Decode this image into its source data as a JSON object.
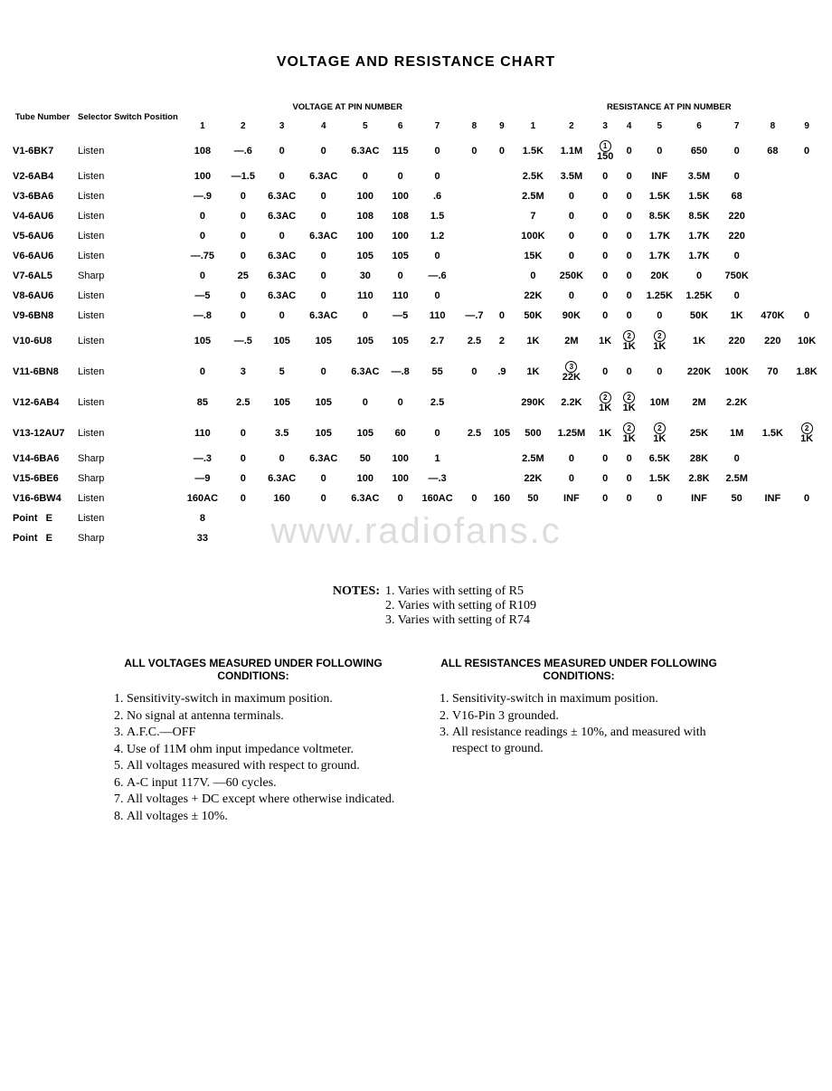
{
  "title": "VOLTAGE AND RESISTANCE CHART",
  "watermark": "www.radiofans.c",
  "headers": {
    "tube": "Tube Number",
    "selector": "Selector Switch Position",
    "voltage_group": "VOLTAGE AT PIN NUMBER",
    "resistance_group": "RESISTANCE AT PIN NUMBER",
    "pins": [
      "1",
      "2",
      "3",
      "4",
      "5",
      "6",
      "7",
      "8",
      "9"
    ]
  },
  "rows": [
    {
      "tube": "V1-6BK7",
      "sel": "Listen",
      "v": [
        "108",
        "—.6",
        "0",
        "0",
        "6.3AC",
        "115",
        "0",
        "0",
        "0"
      ],
      "r": [
        "1.5K",
        "1.1M",
        {
          "note": "1",
          "val": "150"
        },
        "0",
        "0",
        "650",
        "0",
        "68",
        "0"
      ]
    },
    {
      "tube": "V2-6AB4",
      "sel": "Listen",
      "v": [
        "100",
        "—1.5",
        "0",
        "6.3AC",
        "0",
        "0",
        "0",
        "",
        ""
      ],
      "r": [
        "2.5K",
        "3.5M",
        "0",
        "0",
        "INF",
        "3.5M",
        "0",
        "",
        ""
      ]
    },
    {
      "tube": "V3-6BA6",
      "sel": "Listen",
      "v": [
        "—.9",
        "0",
        "6.3AC",
        "0",
        "100",
        "100",
        ".6",
        "",
        ""
      ],
      "r": [
        "2.5M",
        "0",
        "0",
        "0",
        "1.5K",
        "1.5K",
        "68",
        "",
        ""
      ]
    },
    {
      "tube": "V4-6AU6",
      "sel": "Listen",
      "v": [
        "0",
        "0",
        "6.3AC",
        "0",
        "108",
        "108",
        "1.5",
        "",
        ""
      ],
      "r": [
        "7",
        "0",
        "0",
        "0",
        "8.5K",
        "8.5K",
        "220",
        "",
        ""
      ]
    },
    {
      "tube": "V5-6AU6",
      "sel": "Listen",
      "v": [
        "0",
        "0",
        "0",
        "6.3AC",
        "100",
        "100",
        "1.2",
        "",
        ""
      ],
      "r": [
        "100K",
        "0",
        "0",
        "0",
        "1.7K",
        "1.7K",
        "220",
        "",
        ""
      ]
    },
    {
      "tube": "V6-6AU6",
      "sel": "Listen",
      "v": [
        "—.75",
        "0",
        "6.3AC",
        "0",
        "105",
        "105",
        "0",
        "",
        ""
      ],
      "r": [
        "15K",
        "0",
        "0",
        "0",
        "1.7K",
        "1.7K",
        "0",
        "",
        ""
      ]
    },
    {
      "tube": "V7-6AL5",
      "sel": "Sharp",
      "v": [
        "0",
        "25",
        "6.3AC",
        "0",
        "30",
        "0",
        "—.6",
        "",
        ""
      ],
      "r": [
        "0",
        "250K",
        "0",
        "0",
        "20K",
        "0",
        "750K",
        "",
        ""
      ]
    },
    {
      "tube": "V8-6AU6",
      "sel": "Listen",
      "v": [
        "—5",
        "0",
        "6.3AC",
        "0",
        "110",
        "110",
        "0",
        "",
        ""
      ],
      "r": [
        "22K",
        "0",
        "0",
        "0",
        "1.25K",
        "1.25K",
        "0",
        "",
        ""
      ]
    },
    {
      "tube": "V9-6BN8",
      "sel": "Listen",
      "v": [
        "—.8",
        "0",
        "0",
        "6.3AC",
        "0",
        "—5",
        "110",
        "—.7",
        "0"
      ],
      "r": [
        "50K",
        "90K",
        "0",
        "0",
        "0",
        "50K",
        "1K",
        "470K",
        "0"
      ]
    },
    {
      "tube": "V10-6U8",
      "sel": "Listen",
      "v": [
        "105",
        "—.5",
        "105",
        "105",
        "105",
        "105",
        "2.7",
        "2.5",
        "2"
      ],
      "r": [
        "1K",
        "2M",
        "1K",
        {
          "note": "2",
          "val": "1K"
        },
        {
          "note": "2",
          "val": "1K"
        },
        "1K",
        "220",
        "220",
        "10K"
      ]
    },
    {
      "tube": "V11-6BN8",
      "sel": "Listen",
      "v": [
        "0",
        "3",
        "5",
        "0",
        "6.3AC",
        "—.8",
        "55",
        "0",
        ".9"
      ],
      "r": [
        "1K",
        {
          "note": "3",
          "val": "22K"
        },
        "0",
        "0",
        "0",
        "220K",
        "100K",
        "70",
        "1.8K"
      ]
    },
    {
      "tube": "V12-6AB4",
      "sel": "Listen",
      "v": [
        "85",
        "2.5",
        "105",
        "105",
        "0",
        "0",
        "2.5",
        "",
        ""
      ],
      "r": [
        "290K",
        "2.2K",
        {
          "note": "2",
          "val": "1K"
        },
        {
          "note": "2",
          "val": "1K"
        },
        "10M",
        "2M",
        "2.2K",
        "",
        ""
      ]
    },
    {
      "tube": "V13-12AU7",
      "sel": "Listen",
      "v": [
        "110",
        "0",
        "3.5",
        "105",
        "105",
        "60",
        "0",
        "2.5",
        "105"
      ],
      "r": [
        "500",
        "1.25M",
        "1K",
        {
          "note": "2",
          "val": "1K"
        },
        {
          "note": "2",
          "val": "1K"
        },
        "25K",
        "1M",
        "1.5K",
        {
          "note": "2",
          "val": "1K"
        }
      ]
    },
    {
      "tube": "V14-6BA6",
      "sel": "Sharp",
      "v": [
        "—.3",
        "0",
        "0",
        "6.3AC",
        "50",
        "100",
        "1",
        "",
        ""
      ],
      "r": [
        "2.5M",
        "0",
        "0",
        "0",
        "6.5K",
        "28K",
        "0",
        "",
        ""
      ]
    },
    {
      "tube": "V15-6BE6",
      "sel": "Sharp",
      "v": [
        "—9",
        "0",
        "6.3AC",
        "0",
        "100",
        "100",
        "—.3",
        "",
        ""
      ],
      "r": [
        "22K",
        "0",
        "0",
        "0",
        "1.5K",
        "2.8K",
        "2.5M",
        "",
        ""
      ]
    },
    {
      "tube": "V16-6BW4",
      "sel": "Listen",
      "v": [
        "160AC",
        "0",
        "160",
        "0",
        "6.3AC",
        "0",
        "160AC",
        "0",
        "160"
      ],
      "r": [
        "50",
        "INF",
        "0",
        "0",
        "0",
        "INF",
        "50",
        "INF",
        "0"
      ]
    }
  ],
  "point_rows": [
    {
      "tube": "Point   E",
      "sel": "Listen",
      "val": "8"
    },
    {
      "tube": "Point   E",
      "sel": "Sharp",
      "val": "33"
    }
  ],
  "notes": {
    "label": "NOTES:",
    "items": [
      "1. Varies with setting of R5",
      "2. Varies with setting of R109",
      "3. Varies with setting of R74"
    ]
  },
  "conditions": {
    "voltage": {
      "title": "ALL VOLTAGES MEASURED UNDER FOLLOWING CONDITIONS:",
      "items": [
        "Sensitivity-switch in maximum position.",
        "No signal at antenna terminals.",
        "A.F.C.—OFF",
        "Use of 11M ohm input impedance voltmeter.",
        "All voltages measured with respect to ground.",
        "A-C input 117V. —60 cycles.",
        "All voltages + DC except where otherwise indicated.",
        "All voltages ± 10%."
      ]
    },
    "resistance": {
      "title": "ALL RESISTANCES MEASURED UNDER FOLLOWING CONDITIONS:",
      "items": [
        "Sensitivity-switch in maximum position.",
        "V16-Pin 3 grounded.",
        "All resistance readings ± 10%, and measured with respect to ground."
      ]
    }
  },
  "style": {
    "background": "#ffffff",
    "text_color": "#000000",
    "title_fontsize": 16,
    "header_fontsize": 9.5,
    "body_fontsize": 11,
    "notes_fontsize": 14,
    "watermark_color": "#dddddd"
  }
}
